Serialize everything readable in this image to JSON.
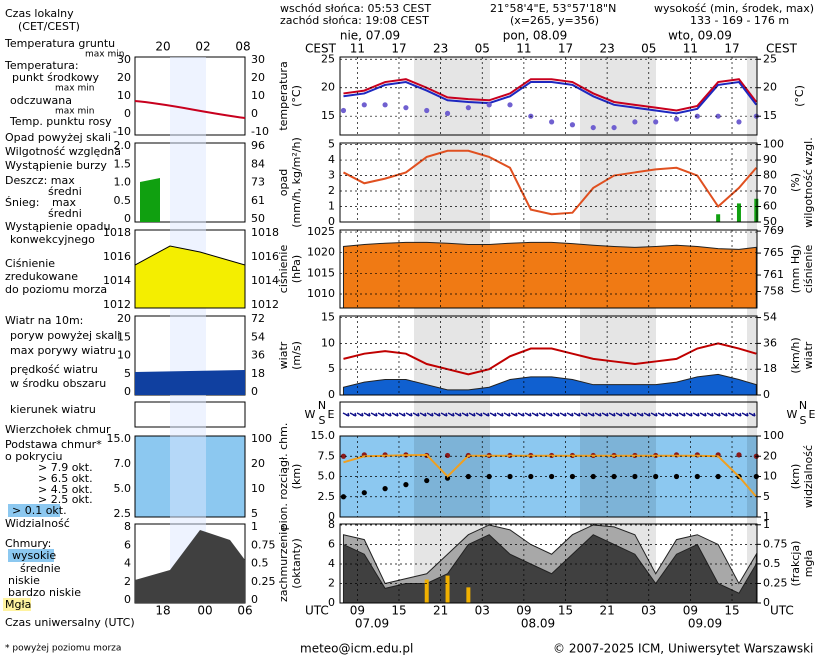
{
  "header": {
    "sunrise": "wschód słońca: 05:53 CEST",
    "sunset": "zachód słońca: 19:08 CEST",
    "coords": "21°58'4\"E, 53°57'18\"N",
    "grid_point": "(x=265, y=356)",
    "elevation_title": "wysokość (min, środek, max)",
    "elevation": "133 - 169 - 176 m"
  },
  "footer": {
    "email": "meteo@icm.edu.pl",
    "copyright": "© 2007-2025 ICM, Uniwersytet Warszawski"
  },
  "time_axis": {
    "local_label": "CEST",
    "utc_label": "UTC",
    "xlim": [
      6.5,
      66.6
    ],
    "xticks": [
      {
        "value": 9,
        "label": "09"
      },
      15,
      21,
      {
        "value": 27,
        "label": "03"
      },
      {
        "value": 33,
        "label": "09"
      },
      {
        "value": 39,
        "label": "15"
      },
      {
        "value": 45,
        "label": "21"
      },
      {
        "value": 51,
        "label": "03"
      },
      {
        "value": 57,
        "label": "09"
      },
      {
        "value": 63,
        "label": "15"
      }
    ],
    "local_ticks": [
      "11",
      "17",
      "23",
      "05",
      "11",
      "17",
      "23",
      "05",
      "11",
      "17"
    ],
    "top_dates": [
      "nie, 07.09",
      "pon, 08.09",
      "wto, 09.09"
    ],
    "bottom_dates": [
      "07.09",
      "08.09",
      "09.09"
    ],
    "x": [
      7,
      10,
      13,
      16,
      19,
      22,
      25,
      28,
      31,
      34,
      37,
      40,
      43,
      46,
      49,
      52,
      55,
      58,
      61,
      64,
      66.5
    ]
  },
  "wind_direction": {
    "labels": [
      "N",
      "W",
      "S",
      "E"
    ]
  },
  "legend": [
    "Czas lokalny",
    "(CET/CEST)",
    "Temperatura gruntu",
    "max min",
    "Temperatura:",
    "max min",
    "max min",
    "Opad powyżej skali",
    "Wystąpienie burzy",
    "średni",
    "Śnieg:",
    "max",
    "średni",
    "Wystąpienie opadu",
    "konwekcyjnego",
    "zredukowane",
    "do poziomu morza",
    "Wiatr na 10m:",
    "poryw powyżej skali",
    "w środku obszaru",
    "kierunek wiatru",
    "Podstawa chmur*",
    "o pokryciu",
    "> 6.5 okt.",
    "> 4.5 okt.",
    "> 2.5 okt.",
    "> 0.1 okt.",
    "Chmury:",
    "wysokie",
    "bardzo niskie",
    "Czas uniwersalny (UTC)",
    "* powyżej poziomu morza"
  ],
  "legend_axes": {
    "top": [
      "20",
      "02",
      "08"
    ],
    "bottom": [
      "18",
      "00",
      "06"
    ],
    "panels": [
      {
        "left": [
          30,
          20,
          10,
          0,
          -10
        ],
        "right": [
          30,
          20,
          10,
          0,
          -10
        ]
      },
      {
        "left": [
          "2.0",
          "1.5",
          "1.0",
          "0.5",
          0
        ],
        "right": [
          96,
          84,
          73,
          61,
          50
        ]
      },
      {
        "left": [
          1018,
          1016,
          1014,
          1012
        ],
        "right": [
          1018,
          1016,
          1014,
          1012
        ]
      },
      {
        "left": [
          20,
          15,
          10,
          5,
          0
        ],
        "right": [
          72,
          54,
          36,
          18,
          0
        ]
      },
      {
        "left": [
          "15.0",
          "7.0",
          "5.0",
          "2.5"
        ],
        "right": [
          100,
          20,
          10,
          5
        ]
      },
      {
        "left": [
          8,
          6,
          4,
          2,
          0
        ],
        "right": [
          1,
          0.75,
          0.5,
          0.25,
          0
        ]
      }
    ]
  },
  "chart_data": [
    {
      "type": "line",
      "y_label": [
        "temperatura",
        "(°C)"
      ],
      "y2_label": [
        "(°C)"
      ],
      "ylim": [
        11.7,
        25.4
      ],
      "yticks": [
        15,
        20,
        25
      ],
      "y2lim": [
        11.7,
        25.4
      ],
      "y2ticks": [
        15,
        20,
        25
      ],
      "grid": true,
      "series": [
        {
          "name": "punkt środkowy",
          "type": "line",
          "color": "#c8001e",
          "values": [
            19,
            19.5,
            21,
            21.5,
            20,
            18.3,
            18,
            17.8,
            19,
            21.5,
            21.5,
            21,
            19,
            17.5,
            17,
            16.5,
            16,
            16.8,
            21,
            21.5,
            17.5
          ]
        },
        {
          "name": "odczuwana",
          "type": "line",
          "color": "#1e28c0",
          "values": [
            18.5,
            19,
            20.5,
            21,
            19.5,
            17.8,
            17.5,
            17.3,
            18.5,
            21,
            21,
            20.5,
            18.5,
            17,
            16.5,
            16,
            15.5,
            16.3,
            20.5,
            21,
            17
          ]
        },
        {
          "name": "Temp. punktu rosy",
          "type": "dots",
          "color": "#7060d0",
          "values": [
            16,
            17,
            17,
            16.5,
            16,
            15.5,
            16.5,
            17,
            17,
            15,
            14,
            13.5,
            13,
            13,
            14,
            14,
            14.5,
            15,
            15,
            14,
            15
          ]
        }
      ]
    },
    {
      "type": "line",
      "y_label": [
        "opad",
        "(mm/h, kg/m²/h)"
      ],
      "y2_label": [
        "(%)",
        "wilgotność wzgl."
      ],
      "ylim": [
        0,
        5.1
      ],
      "yticks": [
        0,
        1,
        2,
        3,
        4,
        5
      ],
      "y2lim": [
        50,
        101
      ],
      "y2ticks": [
        50,
        60,
        70,
        80,
        90,
        100
      ],
      "grid": true,
      "series": [
        {
          "name": "Wilgotność względna",
          "type": "line",
          "axis": "y2",
          "color": "#e05020",
          "values": [
            82,
            75,
            78,
            82,
            92,
            96,
            96,
            92,
            85,
            58,
            55,
            56,
            72,
            80,
            82,
            84,
            85,
            80,
            60,
            72,
            85
          ]
        },
        {
          "name": "Deszcz: max",
          "type": "bars",
          "color": "#10a010",
          "values": [
            0,
            0,
            0,
            0,
            0,
            0,
            0,
            0,
            0,
            0,
            0,
            0,
            0,
            0,
            0,
            0,
            0,
            0,
            0.5,
            1.2,
            1.5
          ]
        }
      ]
    },
    {
      "type": "area",
      "y_label": [
        "ciśnienie",
        "(hPa)"
      ],
      "y2_label": [
        "(mm Hg)",
        "ciśnienie"
      ],
      "ylim": [
        1006.6,
        1025.5
      ],
      "yticks": [
        1010,
        1015,
        1020,
        1025
      ],
      "y2lim": [
        755,
        769.2
      ],
      "y2ticks": [
        758,
        761,
        765,
        769
      ],
      "grid": true,
      "series": [
        {
          "name": "Ciśnienie",
          "type": "area",
          "color": "#f07a14",
          "values": [
            1021.5,
            1022,
            1022.3,
            1022.5,
            1022.5,
            1022.3,
            1022,
            1022,
            1022.3,
            1022.5,
            1022.5,
            1022.2,
            1021.8,
            1021.5,
            1021.3,
            1021.5,
            1021.8,
            1021.5,
            1021,
            1020.8,
            1021.3
          ]
        }
      ]
    },
    {
      "type": "area",
      "y_label": [
        "wiatr",
        "(m/s)"
      ],
      "y2_label": [
        "(km/h)",
        "wiatr"
      ],
      "ylim": [
        0,
        15.3
      ],
      "yticks": [
        0,
        5,
        10,
        15
      ],
      "y2lim": [
        0,
        55.1
      ],
      "y2ticks": [
        0,
        18,
        36,
        54
      ],
      "grid": true,
      "series": [
        {
          "name": "max porywy wiatru",
          "type": "line",
          "color": "#c00000",
          "values": [
            7,
            8,
            8.5,
            8,
            6,
            5,
            4,
            5,
            7.5,
            9,
            9,
            8,
            7,
            6.5,
            6,
            6.5,
            7,
            9,
            10,
            9,
            8
          ]
        },
        {
          "name": "prędkość wiatru",
          "type": "area",
          "color": "#1060d0",
          "values": [
            1.5,
            2.5,
            3,
            3,
            2,
            1,
            1,
            1.5,
            3,
            3.5,
            3.5,
            3,
            2,
            2,
            2,
            2,
            2.5,
            3.5,
            4,
            3,
            2
          ]
        }
      ]
    },
    {
      "type": "scatter",
      "y_label": [
        "pion. rozciągł. chm.",
        "(km)"
      ],
      "y2_label": [
        "(km)",
        "widzialność"
      ],
      "ylim": [
        0,
        15
      ],
      "yticks": [
        0,
        2.5,
        {
          "value": 5,
          "label": "5.0"
        },
        7.5,
        {
          "value": 15,
          "label": "15.0"
        }
      ],
      "y_scale": "tick-spaced",
      "y2lim": [
        1,
        100
      ],
      "y2ticks": [
        1,
        5,
        10,
        20,
        100
      ],
      "y2_scale": "tick-spaced",
      "grid": true,
      "series": [
        {
          "name": "Wierzchołek chmur",
          "type": "dots",
          "color": "#8b1a1a",
          "values": [
            7.5,
            8,
            8,
            8,
            7.8,
            7.8,
            7.8,
            7.8,
            7.8,
            7.8,
            7.8,
            7.8,
            7.8,
            7.8,
            7.8,
            7.8,
            8,
            8,
            8,
            8,
            7.5
          ]
        },
        {
          "name": "> 7.9 okt.",
          "type": "dots",
          "color": "#000000",
          "values": [
            2.5,
            3,
            3.5,
            4,
            4.5,
            4.8,
            5,
            5,
            5,
            5,
            5,
            5,
            5,
            5,
            5,
            5,
            5,
            5,
            5,
            5,
            5
          ]
        },
        {
          "name": "Widzialność",
          "type": "line",
          "axis": "y2",
          "color": "#f0a020",
          "values": [
            17,
            20,
            22,
            24,
            25,
            10,
            22,
            22,
            22,
            22,
            22,
            22,
            22,
            22,
            22,
            22,
            22,
            22,
            20,
            10,
            5
          ]
        }
      ]
    },
    {
      "type": "area",
      "y_label": [
        "zachmurzenie",
        "(oktanty)"
      ],
      "y2_label": [
        "(frakcja)",
        "mgła"
      ],
      "ylim": [
        0,
        8.1
      ],
      "yticks": [
        0,
        2,
        4,
        6,
        8
      ],
      "y2lim": [
        0,
        1.01
      ],
      "y2ticks": [
        0,
        0.25,
        0.5,
        0.75,
        1
      ],
      "grid": true,
      "series": [
        {
          "name": "średnie",
          "type": "area",
          "color": "#a8a8a8",
          "values": [
            7,
            6.5,
            2,
            2.5,
            3,
            5,
            7,
            8,
            7.5,
            6,
            5,
            7,
            8,
            7.8,
            7,
            3,
            6.5,
            7,
            6,
            2,
            5
          ]
        },
        {
          "name": "niskie",
          "type": "area",
          "color": "#404040",
          "values": [
            6,
            5,
            1.5,
            2,
            2,
            3,
            6,
            7,
            5,
            4,
            3,
            5,
            7,
            6,
            5,
            2,
            5,
            6,
            2,
            1,
            4
          ]
        },
        {
          "name": "Mgła",
          "type": "bars",
          "axis": "y2",
          "color": "#f0b000",
          "values": [
            0,
            0,
            0,
            0,
            0.3,
            0.35,
            0.2,
            0,
            0,
            0,
            0,
            0,
            0,
            0,
            0,
            0,
            0,
            0,
            0,
            0,
            0
          ]
        }
      ]
    }
  ]
}
